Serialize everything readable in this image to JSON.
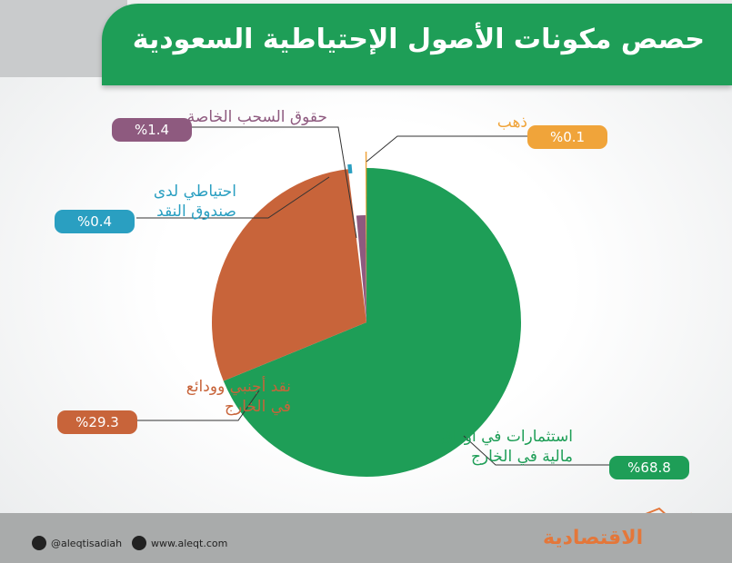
{
  "chart_data": {
    "type": "pie",
    "title": "حصص مكونات الأصول الإحتياطية السعودية",
    "slices": [
      {
        "label": "استثمارات في أوراق مالية في الخارج",
        "value": 68.8,
        "display": "%68.8",
        "color": "#1e9e57"
      },
      {
        "label": "نقد أجنبي وودائع في الخارج",
        "value": 29.3,
        "display": "%29.3",
        "color": "#c8643a"
      },
      {
        "label": "احتياطي لدى صندوق النقد",
        "value": 0.4,
        "display": "%0.4",
        "color": "#2a9fc1"
      },
      {
        "label": "حقوق السحب الخاصة",
        "value": 1.4,
        "display": "%1.4",
        "color": "#8e5a7f"
      },
      {
        "label": "ذهب",
        "value": 0.1,
        "display": "%0.1",
        "color": "#f0a43a"
      }
    ]
  },
  "footer": {
    "twitter": "@aleqtisadiah",
    "website": "www.aleqt.com",
    "logo": "الاقتصادية"
  }
}
